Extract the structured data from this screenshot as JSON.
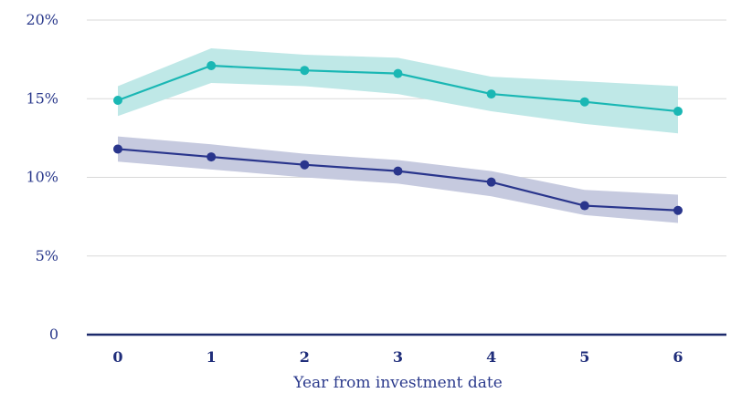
{
  "chart_data": {
    "type": "line",
    "xlabel": "Year from investment date",
    "ylabel": "",
    "categories": [
      "0",
      "1",
      "2",
      "3",
      "4",
      "5",
      "6"
    ],
    "y_tick_labels": [
      "0",
      "5%",
      "10%",
      "15%",
      "20%"
    ],
    "y_ticks": [
      0,
      5,
      10,
      15,
      20
    ],
    "ylim": [
      0,
      20
    ],
    "grid": true,
    "series": [
      {
        "values": [
          14.9,
          17.1,
          16.8,
          16.6,
          15.3,
          14.8,
          14.2
        ],
        "upper": [
          15.8,
          18.2,
          17.8,
          17.6,
          16.4,
          16.1,
          15.8
        ],
        "lower": [
          13.9,
          16.0,
          15.8,
          15.3,
          14.2,
          13.4,
          12.8
        ],
        "color": "#1ab7b4",
        "band_color": "#bfe8e7"
      },
      {
        "values": [
          11.8,
          11.3,
          10.8,
          10.4,
          9.7,
          8.2,
          7.9
        ],
        "upper": [
          12.6,
          12.1,
          11.5,
          11.1,
          10.4,
          9.2,
          8.9
        ],
        "lower": [
          11.0,
          10.5,
          10.0,
          9.6,
          8.8,
          7.6,
          7.1
        ],
        "color": "#29358c",
        "band_color": "#c6cadf"
      }
    ]
  }
}
